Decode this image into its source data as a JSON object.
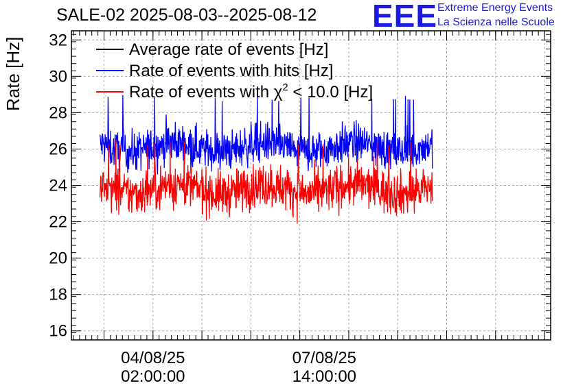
{
  "header": {
    "title": "SALE-02 2025-08-03--2025-08-12",
    "logo_text": "EEE",
    "logo_line1": "Extreme Energy Events",
    "logo_line2": "La Scienza nelle Scuole"
  },
  "colors": {
    "average": "#000000",
    "hits": "#0000ff",
    "chi2": "#ff0000",
    "grid": "#aaaaaa"
  },
  "chart_data": {
    "type": "line",
    "title": "SALE-02 2025-08-03--2025-08-12",
    "ylabel": "Rate [Hz]",
    "xlabel": "",
    "ylim": [
      15.5,
      32.5
    ],
    "yticks": [
      16,
      18,
      20,
      22,
      24,
      26,
      28,
      30,
      32
    ],
    "xlim_hours": [
      -40,
      195
    ],
    "x_unit": "hours relative to 04/08/25 02:00:00",
    "xticks": [
      {
        "hours": 0,
        "date": "04/08/25",
        "time": "02:00:00"
      },
      {
        "hours": 84,
        "date": "07/08/25",
        "time": "14:00:00"
      }
    ],
    "x_data_start_hours": -26,
    "x_data_end_hours": 137,
    "grid": true,
    "legend_position": "top-left",
    "series": [
      {
        "name": "Average rate of events [Hz]",
        "color": "#000000",
        "mean": null,
        "min": null,
        "max": null
      },
      {
        "name": "Rate of events with hits [Hz]",
        "color": "#0000ff",
        "mean": 26.1,
        "min": 24.6,
        "max": 29.0
      },
      {
        "name": "Rate of events with χ² < 10.0 [Hz]",
        "color": "#ff0000",
        "mean": 23.8,
        "min": 21.1,
        "max": 26.6
      }
    ],
    "legend_labels": {
      "average": "Average rate of events [Hz]",
      "hits": "Rate of events with hits [Hz]",
      "chi2_prefix": "Rate of events with χ",
      "chi2_sup": "2",
      "chi2_suffix": " < 10.0 [Hz]"
    }
  }
}
